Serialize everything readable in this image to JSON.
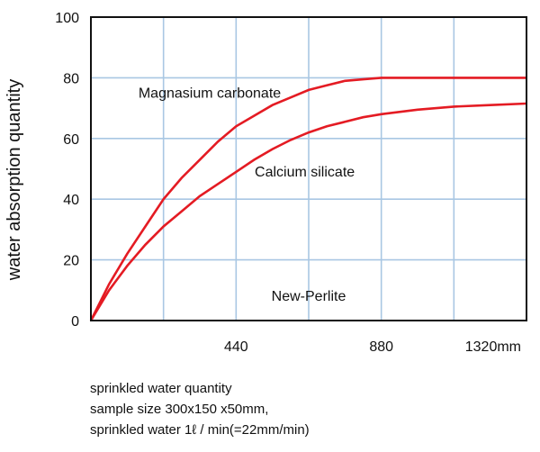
{
  "chart_data": {
    "type": "line",
    "title": "",
    "ylabel": "water absorption quantity",
    "xlabel": "",
    "ylim": [
      0,
      100
    ],
    "xlim": [
      0,
      1320
    ],
    "y_ticks": [
      {
        "value": 0,
        "label": "0"
      },
      {
        "value": 20,
        "label": "20"
      },
      {
        "value": 40,
        "label": "40"
      },
      {
        "value": 60,
        "label": "60"
      },
      {
        "value": 80,
        "label": "80"
      },
      {
        "value": 100,
        "label": "100"
      }
    ],
    "x_ticks": [
      {
        "value": 440,
        "label": "440"
      },
      {
        "value": 880,
        "label": "880"
      },
      {
        "value": 1320,
        "label": "1320mm"
      }
    ],
    "grid_x": [
      220,
      440,
      660,
      880,
      1100
    ],
    "grid_y": [
      20,
      40,
      60,
      80
    ],
    "grid": true,
    "line_color": "#e41b23",
    "grid_color": "#a9c7e3",
    "series": [
      {
        "label": "Magnasium carbonate",
        "points": [
          [
            0,
            0
          ],
          [
            55,
            12
          ],
          [
            110,
            22
          ],
          [
            165,
            31
          ],
          [
            220,
            40
          ],
          [
            275,
            47
          ],
          [
            330,
            53
          ],
          [
            385,
            59
          ],
          [
            440,
            64
          ],
          [
            495,
            67.5
          ],
          [
            550,
            71
          ],
          [
            605,
            73.5
          ],
          [
            660,
            76
          ],
          [
            715,
            77.5
          ],
          [
            770,
            79
          ],
          [
            825,
            79.5
          ],
          [
            880,
            80
          ],
          [
            1100,
            80
          ],
          [
            1320,
            80
          ]
        ]
      },
      {
        "label": "Calcium silicate",
        "points": [
          [
            0,
            0
          ],
          [
            55,
            10
          ],
          [
            110,
            18
          ],
          [
            165,
            25
          ],
          [
            220,
            31
          ],
          [
            275,
            36
          ],
          [
            330,
            41
          ],
          [
            385,
            45
          ],
          [
            440,
            49
          ],
          [
            495,
            53
          ],
          [
            550,
            56.5
          ],
          [
            605,
            59.5
          ],
          [
            660,
            62
          ],
          [
            715,
            64
          ],
          [
            770,
            65.5
          ],
          [
            825,
            67
          ],
          [
            880,
            68
          ],
          [
            990,
            69.5
          ],
          [
            1100,
            70.5
          ],
          [
            1210,
            71
          ],
          [
            1320,
            71.5
          ]
        ]
      }
    ],
    "annotations": [
      {
        "text": "Magnasium carbonate",
        "x": 360,
        "y": 73.5,
        "anchor": "middle"
      },
      {
        "text": "Calcium silicate",
        "x": 648,
        "y": 47.5,
        "anchor": "middle"
      },
      {
        "text": "New-Perlite",
        "x": 660,
        "y": 6.5,
        "anchor": "middle"
      }
    ]
  },
  "notes": [
    "sprinkled water quantity",
    "sample size 300x150 x50mm,",
    "sprinkled water 1ℓ / min(=22mm/min)"
  ]
}
